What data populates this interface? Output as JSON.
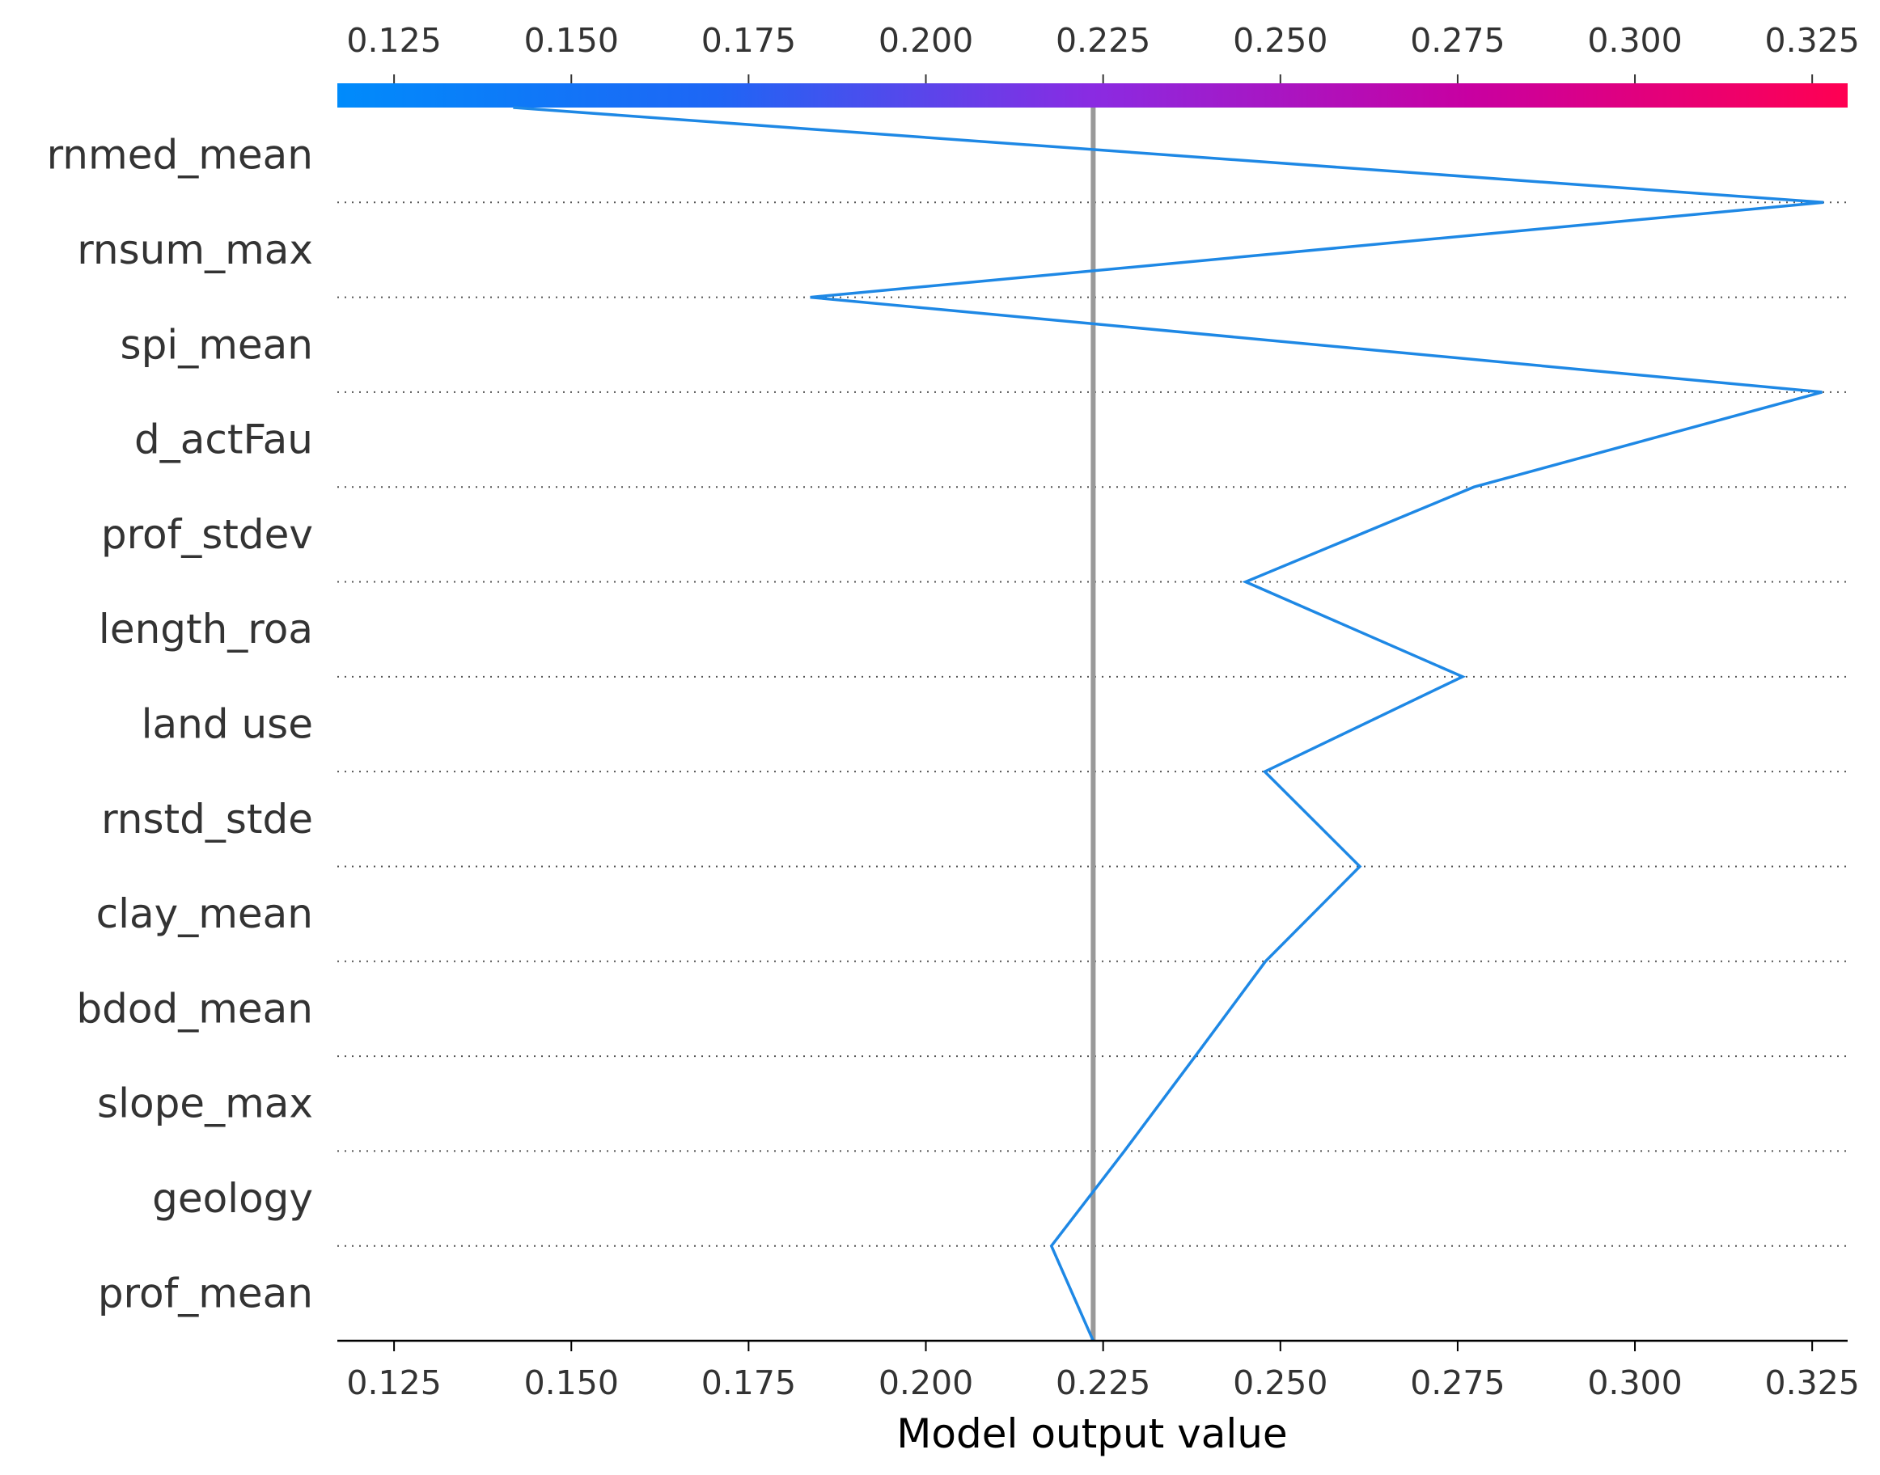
{
  "chart_data": {
    "type": "line",
    "subtype": "shap-decision-plot",
    "xlabel": "Model output value",
    "xlim": [
      0.117,
      0.33
    ],
    "x_ticks": [
      "0.125",
      "0.150",
      "0.175",
      "0.200",
      "0.225",
      "0.250",
      "0.275",
      "0.300",
      "0.325"
    ],
    "x_tick_values": [
      0.125,
      0.15,
      0.175,
      0.2,
      0.225,
      0.25,
      0.275,
      0.3,
      0.325
    ],
    "features": [
      "rnmed_mean",
      "rnsum_max",
      "spi_mean",
      "d_actFau",
      "prof_stdev",
      "length_roa",
      "land use",
      "rnstd_stde",
      "clay_mean",
      "bdod_mean",
      "slope_max",
      "geology",
      "prof_mean"
    ],
    "base_value": 0.2236,
    "path": [
      {
        "level": 13,
        "value": 0.1418
      },
      {
        "level": 12,
        "value": 0.3266
      },
      {
        "level": 11,
        "value": 0.1837
      },
      {
        "level": 10,
        "value": 0.3264
      },
      {
        "level": 9,
        "value": 0.2773
      },
      {
        "level": 8,
        "value": 0.2451
      },
      {
        "level": 7,
        "value": 0.2757
      },
      {
        "level": 6,
        "value": 0.2478
      },
      {
        "level": 5,
        "value": 0.2612
      },
      {
        "level": 4,
        "value": 0.2479
      },
      {
        "level": 3,
        "value": 0.238
      },
      {
        "level": 2,
        "value": 0.228
      },
      {
        "level": 1,
        "value": 0.2177
      },
      {
        "level": 0,
        "value": 0.2236
      }
    ],
    "colorbar": {
      "from": "#008bfb",
      "mid": "#8a2be2",
      "to": "#ff0052"
    },
    "line_color": "#1e88e5",
    "base_line_color": "#999999",
    "grid": "dotted horizontal"
  }
}
